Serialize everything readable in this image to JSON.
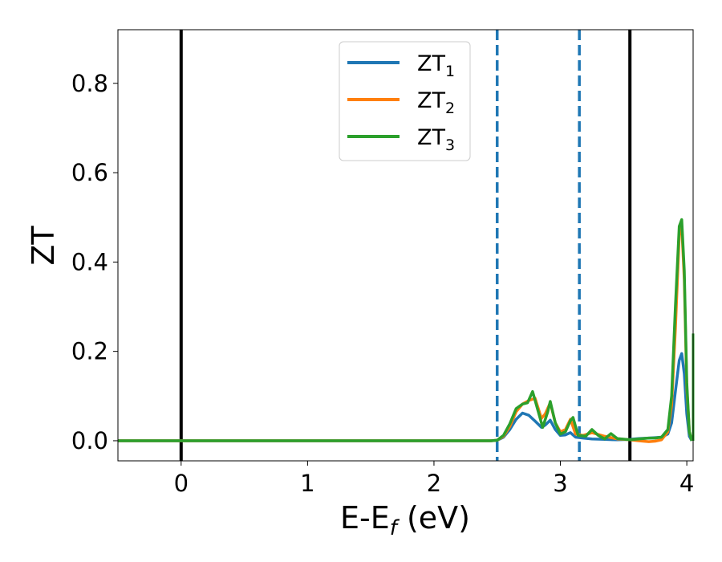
{
  "chart_data": {
    "type": "line",
    "xlabel": "E-E",
    "xlabel_sub": "f",
    "xlabel_unit": " (eV)",
    "ylabel": "ZT",
    "xlim": [
      -0.5,
      4.05
    ],
    "ylim": [
      -0.045,
      0.92
    ],
    "grid": false,
    "legend_position": "top-center",
    "xticks": [
      {
        "value": 0,
        "label": "0"
      },
      {
        "value": 1,
        "label": "1"
      },
      {
        "value": 2,
        "label": "2"
      },
      {
        "value": 3,
        "label": "3"
      },
      {
        "value": 4,
        "label": "4"
      }
    ],
    "yticks": [
      {
        "value": 0.0,
        "label": "0.0"
      },
      {
        "value": 0.2,
        "label": "0.2"
      },
      {
        "value": 0.4,
        "label": "0.4"
      },
      {
        "value": 0.6,
        "label": "0.6"
      },
      {
        "value": 0.8,
        "label": "0.8"
      }
    ],
    "vlines": [
      {
        "x": 0.0,
        "color": "#000000",
        "style": "solid"
      },
      {
        "x": 3.55,
        "color": "#000000",
        "style": "solid"
      },
      {
        "x": 2.5,
        "color": "#1f77b4",
        "style": "dashed"
      },
      {
        "x": 3.15,
        "color": "#1f77b4",
        "style": "dashed"
      }
    ],
    "series": [
      {
        "name": "ZT",
        "name_sub": "1",
        "color": "#1f77b4",
        "x": [
          -0.5,
          2.45,
          2.5,
          2.55,
          2.6,
          2.65,
          2.7,
          2.75,
          2.8,
          2.85,
          2.88,
          2.92,
          2.96,
          3.0,
          3.04,
          3.08,
          3.12,
          3.18,
          3.25,
          3.35,
          3.45,
          3.55,
          3.62,
          3.7,
          3.75,
          3.8,
          3.85,
          3.88,
          3.91,
          3.94,
          3.96,
          3.98,
          4.0,
          4.02,
          4.04
        ],
        "y": [
          0.0,
          0.0,
          0.001,
          0.008,
          0.025,
          0.048,
          0.062,
          0.057,
          0.044,
          0.03,
          0.035,
          0.046,
          0.025,
          0.012,
          0.013,
          0.018,
          0.008,
          0.006,
          0.004,
          0.003,
          0.002,
          0.003,
          0.005,
          0.006,
          0.007,
          0.008,
          0.015,
          0.04,
          0.11,
          0.18,
          0.195,
          0.15,
          0.06,
          0.01,
          0.0
        ]
      },
      {
        "name": "ZT",
        "name_sub": "2",
        "color": "#ff7f0e",
        "x": [
          -0.5,
          2.45,
          2.5,
          2.55,
          2.6,
          2.65,
          2.7,
          2.75,
          2.8,
          2.85,
          2.88,
          2.92,
          2.96,
          3.0,
          3.04,
          3.08,
          3.12,
          3.18,
          3.25,
          3.35,
          3.45,
          3.55,
          3.62,
          3.7,
          3.75,
          3.8,
          3.85,
          3.88,
          3.91,
          3.94,
          3.96,
          3.98,
          4.0,
          4.02,
          4.04
        ],
        "y": [
          0.0,
          0.0,
          0.001,
          0.01,
          0.032,
          0.065,
          0.082,
          0.09,
          0.095,
          0.05,
          0.06,
          0.085,
          0.04,
          0.02,
          0.025,
          0.048,
          0.015,
          0.012,
          0.018,
          0.01,
          0.004,
          0.002,
          0.0,
          -0.002,
          -0.001,
          0.002,
          0.02,
          0.08,
          0.25,
          0.46,
          0.48,
          0.36,
          0.12,
          0.02,
          0.0
        ]
      },
      {
        "name": "ZT",
        "name_sub": "3",
        "color": "#2ca02c",
        "x": [
          -0.5,
          2.45,
          2.5,
          2.55,
          2.6,
          2.65,
          2.7,
          2.74,
          2.78,
          2.82,
          2.86,
          2.9,
          2.92,
          2.96,
          3.0,
          3.04,
          3.08,
          3.1,
          3.14,
          3.2,
          3.25,
          3.3,
          3.35,
          3.4,
          3.45,
          3.55,
          3.62,
          3.7,
          3.75,
          3.8,
          3.85,
          3.88,
          3.91,
          3.94,
          3.96,
          3.98,
          4.0,
          4.02,
          4.04
        ],
        "y": [
          0.0,
          0.0,
          0.001,
          0.012,
          0.038,
          0.072,
          0.082,
          0.085,
          0.11,
          0.07,
          0.03,
          0.065,
          0.088,
          0.04,
          0.015,
          0.02,
          0.045,
          0.052,
          0.012,
          0.01,
          0.025,
          0.012,
          0.004,
          0.016,
          0.005,
          0.002,
          0.004,
          0.006,
          0.006,
          0.008,
          0.025,
          0.1,
          0.3,
          0.48,
          0.495,
          0.38,
          0.13,
          0.02,
          0.0
        ]
      }
    ],
    "extra_segment": {
      "x": 4.05,
      "y_from": 0.0,
      "y_to": 0.24,
      "color": "#2ca02c"
    }
  }
}
